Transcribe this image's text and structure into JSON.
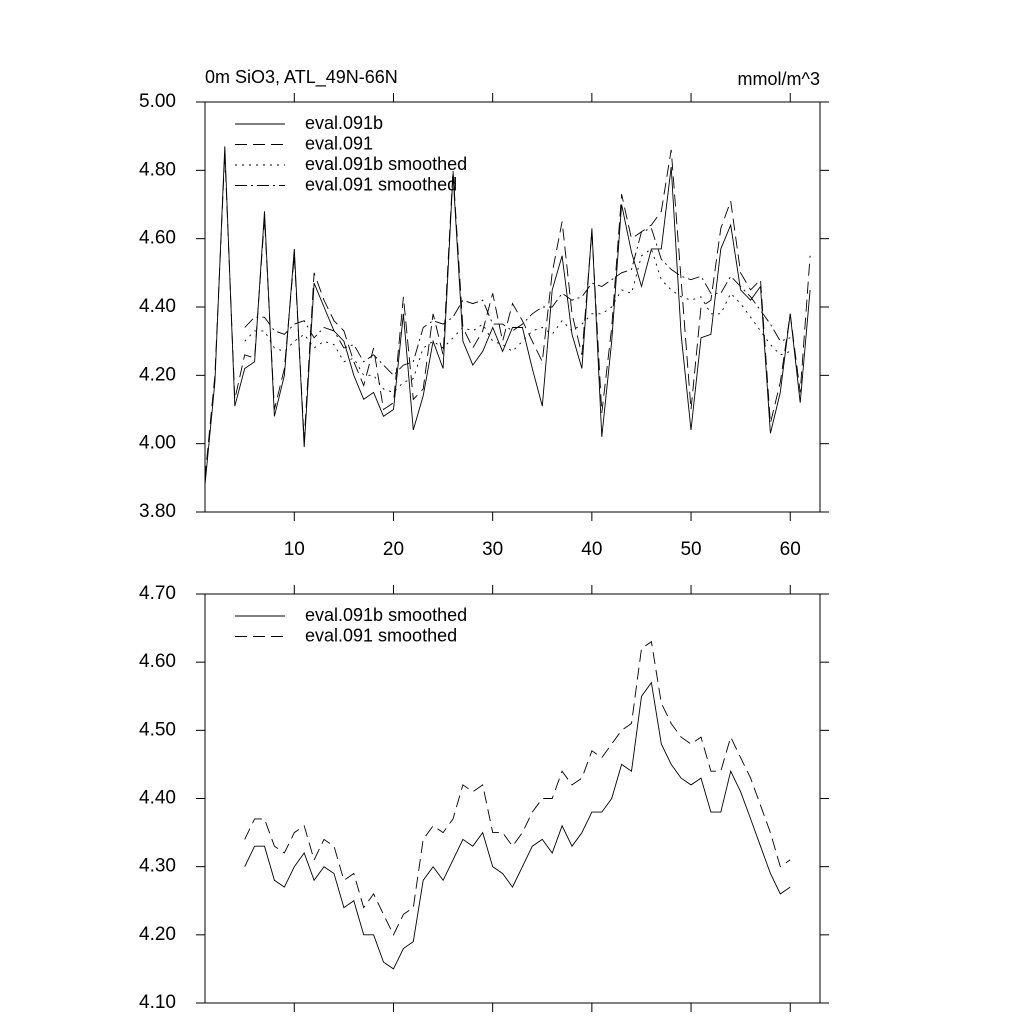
{
  "chart_data": [
    {
      "type": "line",
      "title": "0m SiO3, ATL_49N-66N",
      "units": "mmol/m^3",
      "xlim": [
        1,
        63
      ],
      "xticks": [
        10,
        20,
        30,
        40,
        50,
        60
      ],
      "xtick_labels": true,
      "ylim": [
        3.8,
        5.0
      ],
      "yticks": [
        {
          "value": 3.8,
          "label": "3.80"
        },
        {
          "value": 4.0,
          "label": "4.00"
        },
        {
          "value": 4.2,
          "label": "4.20"
        },
        {
          "value": 4.4,
          "label": "4.40"
        },
        {
          "value": 4.6,
          "label": "4.60"
        },
        {
          "value": 4.8,
          "label": "4.80"
        },
        {
          "value": 5.0,
          "label": "5.00"
        }
      ],
      "legend": "upper left",
      "series": [
        {
          "name": "eval.091b",
          "color": "#000000",
          "dash": "solid",
          "x": [
            1,
            2,
            3,
            4,
            5,
            6,
            7,
            8,
            9,
            10,
            11,
            12,
            13,
            14,
            15,
            16,
            17,
            18,
            19,
            20,
            21,
            22,
            23,
            24,
            25,
            26,
            27,
            28,
            29,
            30,
            31,
            32,
            33,
            34,
            35,
            36,
            37,
            38,
            39,
            40,
            41,
            42,
            43,
            44,
            45,
            46,
            47,
            48,
            49,
            50,
            51,
            52,
            53,
            54,
            55,
            56,
            57,
            58,
            59,
            60,
            61,
            62
          ],
          "values": [
            3.88,
            4.18,
            4.87,
            4.11,
            4.22,
            4.24,
            4.68,
            4.08,
            4.2,
            4.57,
            3.99,
            4.47,
            4.4,
            4.33,
            4.3,
            4.2,
            4.13,
            4.15,
            4.08,
            4.1,
            4.38,
            4.04,
            4.14,
            4.3,
            4.22,
            4.79,
            4.3,
            4.23,
            4.27,
            4.34,
            4.27,
            4.34,
            4.34,
            4.22,
            4.11,
            4.45,
            4.55,
            4.32,
            4.22,
            4.63,
            4.02,
            4.3,
            4.7,
            4.56,
            4.46,
            4.57,
            4.57,
            4.81,
            4.32,
            4.04,
            4.31,
            4.32,
            4.57,
            4.64,
            4.45,
            4.42,
            4.46,
            4.03,
            4.15,
            4.38,
            4.12,
            4.45
          ]
        },
        {
          "name": "eval.091",
          "color": "#000000",
          "dash": "dash",
          "x": [
            1,
            2,
            3,
            4,
            5,
            6,
            7,
            8,
            9,
            10,
            11,
            12,
            13,
            14,
            15,
            16,
            17,
            18,
            19,
            20,
            21,
            22,
            23,
            24,
            25,
            26,
            27,
            28,
            29,
            30,
            31,
            32,
            33,
            34,
            35,
            36,
            37,
            38,
            39,
            40,
            41,
            42,
            43,
            44,
            45,
            46,
            47,
            48,
            49,
            50,
            51,
            52,
            53,
            54,
            55,
            56,
            57,
            58,
            59,
            60,
            61,
            62
          ],
          "values": [
            3.9,
            4.2,
            4.85,
            4.13,
            4.26,
            4.25,
            4.66,
            4.1,
            4.22,
            4.55,
            4.01,
            4.5,
            4.42,
            4.36,
            4.33,
            4.24,
            4.17,
            4.28,
            4.1,
            4.12,
            4.43,
            4.13,
            4.16,
            4.38,
            4.26,
            4.8,
            4.34,
            4.28,
            4.33,
            4.44,
            4.3,
            4.41,
            4.36,
            4.3,
            4.24,
            4.5,
            4.65,
            4.38,
            4.26,
            4.62,
            4.09,
            4.34,
            4.73,
            4.6,
            4.62,
            4.64,
            4.68,
            4.86,
            4.48,
            4.1,
            4.4,
            4.42,
            4.63,
            4.71,
            4.5,
            4.45,
            4.48,
            4.06,
            4.18,
            4.38,
            4.15,
            4.55
          ]
        },
        {
          "name": "eval.091b smoothed",
          "color": "#000000",
          "dash": "dot",
          "x": [
            5,
            6,
            7,
            8,
            9,
            10,
            11,
            12,
            13,
            14,
            15,
            16,
            17,
            18,
            19,
            20,
            21,
            22,
            23,
            24,
            25,
            26,
            27,
            28,
            29,
            30,
            31,
            32,
            33,
            34,
            35,
            36,
            37,
            38,
            39,
            40,
            41,
            42,
            43,
            44,
            45,
            46,
            47,
            48,
            49,
            50,
            51,
            52,
            53,
            54,
            55,
            56,
            57,
            58,
            59,
            60
          ],
          "values": [
            4.3,
            4.33,
            4.33,
            4.28,
            4.27,
            4.3,
            4.32,
            4.28,
            4.3,
            4.29,
            4.24,
            4.25,
            4.2,
            4.2,
            4.16,
            4.15,
            4.18,
            4.19,
            4.28,
            4.3,
            4.28,
            4.31,
            4.34,
            4.33,
            4.35,
            4.3,
            4.29,
            4.27,
            4.3,
            4.33,
            4.34,
            4.32,
            4.36,
            4.33,
            4.35,
            4.38,
            4.38,
            4.4,
            4.45,
            4.44,
            4.55,
            4.57,
            4.48,
            4.45,
            4.43,
            4.42,
            4.43,
            4.38,
            4.38,
            4.44,
            4.41,
            4.37,
            4.33,
            4.29,
            4.26,
            4.27
          ]
        },
        {
          "name": "eval.091 smoothed",
          "color": "#000000",
          "dash": "dashdot",
          "x": [
            5,
            6,
            7,
            8,
            9,
            10,
            11,
            12,
            13,
            14,
            15,
            16,
            17,
            18,
            19,
            20,
            21,
            22,
            23,
            24,
            25,
            26,
            27,
            28,
            29,
            30,
            31,
            32,
            33,
            34,
            35,
            36,
            37,
            38,
            39,
            40,
            41,
            42,
            43,
            44,
            45,
            46,
            47,
            48,
            49,
            50,
            51,
            52,
            53,
            54,
            55,
            56,
            57,
            58,
            59,
            60
          ],
          "values": [
            4.34,
            4.37,
            4.37,
            4.33,
            4.32,
            4.35,
            4.36,
            4.31,
            4.34,
            4.33,
            4.28,
            4.29,
            4.24,
            4.26,
            4.23,
            4.2,
            4.23,
            4.24,
            4.34,
            4.36,
            4.35,
            4.37,
            4.42,
            4.41,
            4.42,
            4.35,
            4.35,
            4.33,
            4.35,
            4.38,
            4.4,
            4.4,
            4.44,
            4.42,
            4.43,
            4.47,
            4.46,
            4.48,
            4.5,
            4.51,
            4.62,
            4.63,
            4.54,
            4.51,
            4.49,
            4.48,
            4.49,
            4.44,
            4.44,
            4.49,
            4.46,
            4.43,
            4.39,
            4.35,
            4.3,
            4.31
          ]
        }
      ]
    },
    {
      "type": "line",
      "xlim": [
        1,
        63
      ],
      "xticks": [
        10,
        20,
        30,
        40,
        50,
        60
      ],
      "xtick_labels": false,
      "ylim": [
        4.1,
        4.7
      ],
      "yticks": [
        {
          "value": 4.1,
          "label": "4.10"
        },
        {
          "value": 4.2,
          "label": "4.20"
        },
        {
          "value": 4.3,
          "label": "4.30"
        },
        {
          "value": 4.4,
          "label": "4.40"
        },
        {
          "value": 4.5,
          "label": "4.50"
        },
        {
          "value": 4.6,
          "label": "4.60"
        },
        {
          "value": 4.7,
          "label": "4.70"
        }
      ],
      "legend": "upper left",
      "series": [
        {
          "name": "eval.091b smoothed",
          "color": "#000000",
          "dash": "solid",
          "x": [
            5,
            6,
            7,
            8,
            9,
            10,
            11,
            12,
            13,
            14,
            15,
            16,
            17,
            18,
            19,
            20,
            21,
            22,
            23,
            24,
            25,
            26,
            27,
            28,
            29,
            30,
            31,
            32,
            33,
            34,
            35,
            36,
            37,
            38,
            39,
            40,
            41,
            42,
            43,
            44,
            45,
            46,
            47,
            48,
            49,
            50,
            51,
            52,
            53,
            54,
            55,
            56,
            57,
            58,
            59,
            60
          ],
          "values": [
            4.3,
            4.33,
            4.33,
            4.28,
            4.27,
            4.3,
            4.32,
            4.28,
            4.3,
            4.29,
            4.24,
            4.25,
            4.2,
            4.2,
            4.16,
            4.15,
            4.18,
            4.19,
            4.28,
            4.3,
            4.28,
            4.31,
            4.34,
            4.33,
            4.35,
            4.3,
            4.29,
            4.27,
            4.3,
            4.33,
            4.34,
            4.32,
            4.36,
            4.33,
            4.35,
            4.38,
            4.38,
            4.4,
            4.45,
            4.44,
            4.55,
            4.57,
            4.48,
            4.45,
            4.43,
            4.42,
            4.43,
            4.38,
            4.38,
            4.44,
            4.41,
            4.37,
            4.33,
            4.29,
            4.26,
            4.27
          ]
        },
        {
          "name": "eval.091 smoothed",
          "color": "#000000",
          "dash": "dash",
          "x": [
            5,
            6,
            7,
            8,
            9,
            10,
            11,
            12,
            13,
            14,
            15,
            16,
            17,
            18,
            19,
            20,
            21,
            22,
            23,
            24,
            25,
            26,
            27,
            28,
            29,
            30,
            31,
            32,
            33,
            34,
            35,
            36,
            37,
            38,
            39,
            40,
            41,
            42,
            43,
            44,
            45,
            46,
            47,
            48,
            49,
            50,
            51,
            52,
            53,
            54,
            55,
            56,
            57,
            58,
            59,
            60
          ],
          "values": [
            4.34,
            4.37,
            4.37,
            4.33,
            4.32,
            4.35,
            4.36,
            4.31,
            4.34,
            4.33,
            4.28,
            4.29,
            4.24,
            4.26,
            4.23,
            4.2,
            4.23,
            4.24,
            4.34,
            4.36,
            4.35,
            4.37,
            4.42,
            4.41,
            4.42,
            4.35,
            4.35,
            4.33,
            4.35,
            4.38,
            4.4,
            4.4,
            4.44,
            4.42,
            4.43,
            4.47,
            4.46,
            4.48,
            4.5,
            4.51,
            4.62,
            4.63,
            4.54,
            4.51,
            4.49,
            4.48,
            4.49,
            4.44,
            4.44,
            4.49,
            4.46,
            4.43,
            4.39,
            4.35,
            4.3,
            4.31
          ]
        }
      ]
    }
  ]
}
